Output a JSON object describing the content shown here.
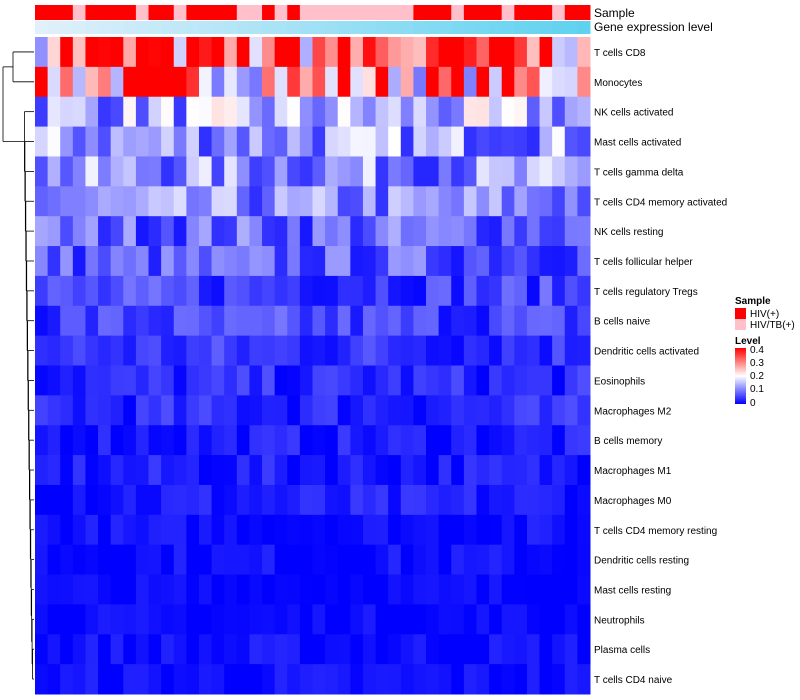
{
  "chart_data": {
    "type": "heatmap",
    "annotation_rows": [
      {
        "name": "Sample",
        "label": "Sample"
      },
      {
        "name": "Gene expression level",
        "label": "Gene expression level"
      }
    ],
    "row_labels": [
      "T cells CD8",
      "Monocytes",
      "NK cells activated",
      "Mast cells activated",
      "T cells gamma delta",
      "T cells CD4 memory activated",
      "NK cells resting",
      "T cells follicular helper",
      "T cells regulatory  Tregs",
      "B cells naive",
      "Dendritic cells activated",
      "Eosinophils",
      "Macrophages M2",
      "B cells memory",
      "Macrophages M1",
      "Macrophages M0",
      "T cells CD4 memory resting",
      "Dendritic cells resting",
      "Mast cells resting",
      "Neutrophils",
      "Plasma cells",
      "T cells CD4 naive"
    ],
    "n_columns": 44,
    "sample_groups": [
      1,
      1,
      1,
      0,
      1,
      1,
      1,
      1,
      0,
      1,
      1,
      0,
      1,
      1,
      1,
      1,
      0,
      0,
      1,
      0,
      1,
      0,
      0,
      0,
      0,
      0,
      0,
      0,
      0,
      0,
      1,
      1,
      1,
      0,
      1,
      1,
      1,
      0,
      1,
      1,
      1,
      0,
      1,
      1
    ],
    "value_range": [
      0,
      0.4
    ],
    "row_means": [
      0.32,
      0.27,
      0.13,
      0.12,
      0.11,
      0.1,
      0.08,
      0.07,
      0.05,
      0.05,
      0.04,
      0.03,
      0.03,
      0.02,
      0.02,
      0.02,
      0.01,
      0.01,
      0.005,
      0.005,
      0.01,
      0.01
    ],
    "colors": {
      "low": "#0000ff",
      "mid": "#ffffff",
      "high": "#ff0000",
      "hiv": "#ff0000",
      "hivtb": "#ffc0cb",
      "expr": "#6ecff0"
    },
    "legend": {
      "sample_title": "Sample",
      "sample_items": [
        "HIV(+)",
        "HIV/TB(+)"
      ],
      "level_title": "Level",
      "level_ticks": [
        "0.4",
        "0.3",
        "0.2",
        "0.1",
        "0"
      ]
    }
  }
}
